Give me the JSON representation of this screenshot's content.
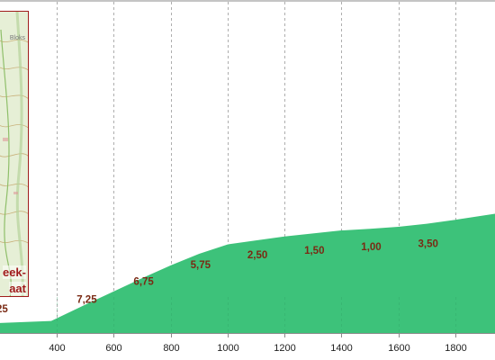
{
  "chart_data": {
    "type": "area",
    "title": "",
    "xlabel": "",
    "ylabel": "",
    "xlim": [
      200,
      1940
    ],
    "ylim": [
      0,
      100
    ],
    "x_ticks": [
      400,
      600,
      800,
      1000,
      1200,
      1400,
      1600,
      1800
    ],
    "grid": "vertical dashed",
    "fill_color": "#3dc27a",
    "points": [
      {
        "x": 200,
        "y": 3
      },
      {
        "x": 380,
        "y": 3.6
      },
      {
        "x": 500,
        "y": 8.5
      },
      {
        "x": 600,
        "y": 12.5
      },
      {
        "x": 700,
        "y": 16.5
      },
      {
        "x": 800,
        "y": 20.3
      },
      {
        "x": 900,
        "y": 23.8
      },
      {
        "x": 1000,
        "y": 26.6
      },
      {
        "x": 1100,
        "y": 27.8
      },
      {
        "x": 1200,
        "y": 29
      },
      {
        "x": 1300,
        "y": 29.9
      },
      {
        "x": 1400,
        "y": 30.8
      },
      {
        "x": 1500,
        "y": 31.3
      },
      {
        "x": 1600,
        "y": 31.9
      },
      {
        "x": 1700,
        "y": 32.8
      },
      {
        "x": 1800,
        "y": 34
      },
      {
        "x": 1940,
        "y": 35.8
      }
    ],
    "data_labels": [
      {
        "x": 200,
        "text": "25",
        "y": -1.8
      },
      {
        "x": 505,
        "text": "7,25",
        "y": 1
      },
      {
        "x": 705,
        "text": "6,75",
        "y": 6.5
      },
      {
        "x": 905,
        "text": "5,75",
        "y": 11.5
      },
      {
        "x": 1105,
        "text": "2,50",
        "y": 14.5
      },
      {
        "x": 1305,
        "text": "1,50",
        "y": 15.8
      },
      {
        "x": 1505,
        "text": "1,00",
        "y": 16.8
      },
      {
        "x": 1705,
        "text": "3,50",
        "y": 17.8
      }
    ]
  },
  "map_inset": {
    "line1": "eek-",
    "line2": "aat",
    "small_text": "Bloks"
  }
}
